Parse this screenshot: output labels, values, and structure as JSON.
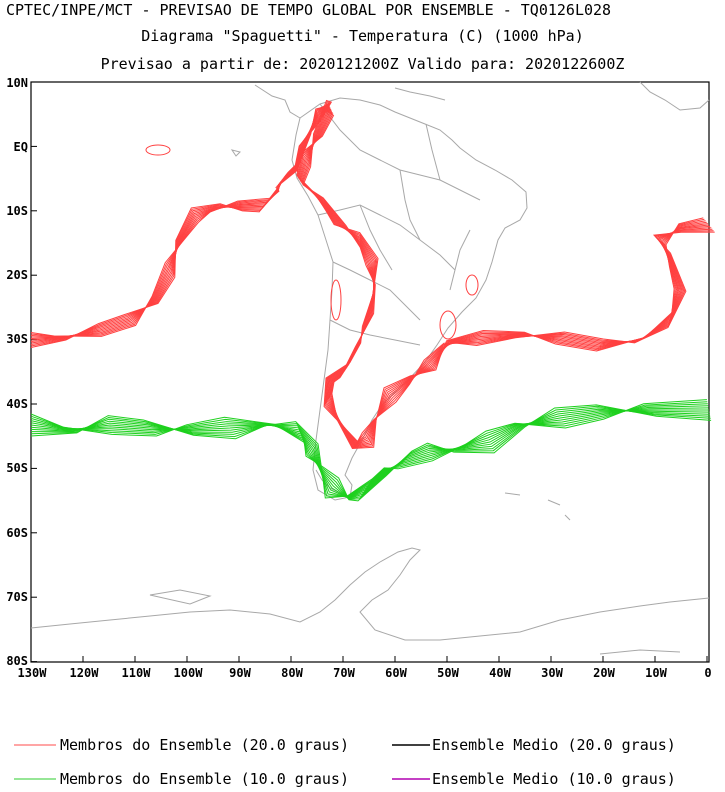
{
  "titles": {
    "line1": "CPTEC/INPE/MCT - PREVISAO DE TEMPO GLOBAL POR ENSEMBLE - TQ0126L028",
    "line2": "Diagrama \"Spaguetti\" - Temperatura (C) (1000 hPa)",
    "line3": "Previsao a partir de: 2020121200Z  Valido para: 2020122600Z"
  },
  "axes": {
    "lat_labels": [
      "10N",
      "EQ",
      "10S",
      "20S",
      "30S",
      "40S",
      "50S",
      "60S",
      "70S",
      "80S"
    ],
    "lon_labels": [
      "130W",
      "120W",
      "110W",
      "100W",
      "90W",
      "80W",
      "70W",
      "60W",
      "50W",
      "40W",
      "30W",
      "20W",
      "10W",
      "0"
    ]
  },
  "legend": {
    "members20": {
      "label": "Membros do Ensemble (20.0 graus)",
      "color": "#ff4b4b"
    },
    "mean20": {
      "label": "Ensemble Medio (20.0 graus)",
      "color": "#000000"
    },
    "members10": {
      "label": "Membros do Ensemble (10.0 graus)",
      "color": "#2ecc2e"
    },
    "mean10": {
      "label": "Ensemble Medio (10.0 graus)",
      "color": "#b000b0"
    }
  },
  "map_colors": {
    "coast": "#a8a8a8",
    "red": "#ff4040",
    "green": "#1ed01e"
  }
}
